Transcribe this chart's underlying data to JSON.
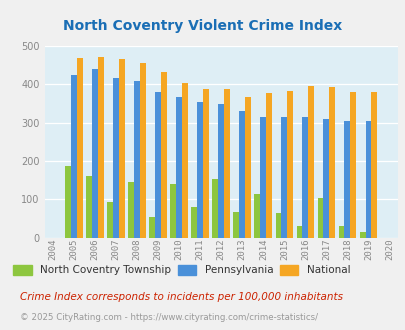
{
  "title": "North Coventry Violent Crime Index",
  "years": [
    2004,
    2005,
    2006,
    2007,
    2008,
    2009,
    2010,
    2011,
    2012,
    2013,
    2014,
    2015,
    2016,
    2017,
    2018,
    2019,
    2020
  ],
  "north_coventry": [
    null,
    187,
    160,
    93,
    145,
    55,
    140,
    80,
    154,
    67,
    115,
    64,
    30,
    103,
    30,
    15,
    null
  ],
  "pennsylvania": [
    null,
    424,
    441,
    418,
    408,
    380,
    367,
    354,
    348,
    330,
    314,
    314,
    314,
    311,
    305,
    305,
    null
  ],
  "national": [
    null,
    469,
    473,
    467,
    455,
    432,
    405,
    388,
    388,
    368,
    378,
    384,
    397,
    394,
    381,
    380,
    null
  ],
  "bar_color_nc": "#8dc63f",
  "bar_color_pa": "#4a90d9",
  "bar_color_nat": "#f5a623",
  "bg_color": "#deeef5",
  "fig_color": "#f0f0f0",
  "title_color": "#1a6eb5",
  "legend_label_nc": "North Coventry Township",
  "legend_label_pa": "Pennsylvania",
  "legend_label_nat": "National",
  "footnote1": "Crime Index corresponds to incidents per 100,000 inhabitants",
  "footnote2": "© 2025 CityRating.com - https://www.cityrating.com/crime-statistics/",
  "ylim": [
    0,
    500
  ],
  "yticks": [
    0,
    100,
    200,
    300,
    400,
    500
  ],
  "footnote1_color": "#cc2200",
  "footnote2_color": "#999999",
  "tick_color": "#888888"
}
